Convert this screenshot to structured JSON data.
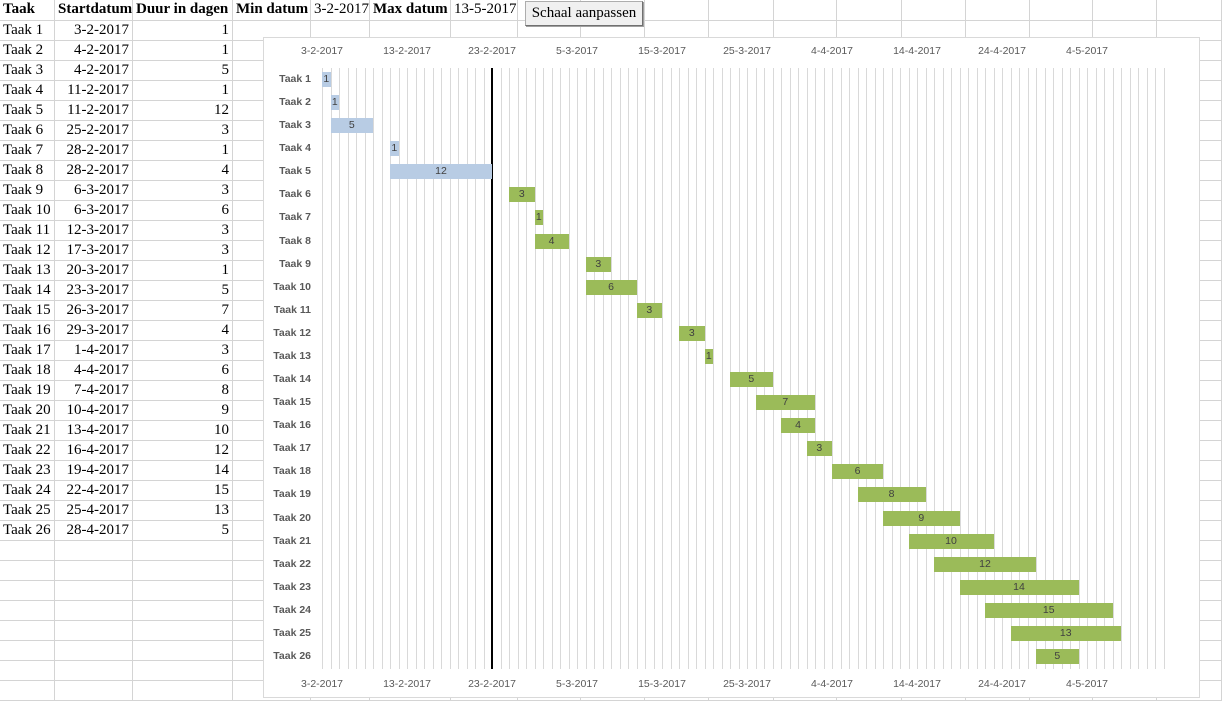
{
  "sheet": {
    "headers": [
      "Taak",
      "Startdatum",
      "Duur in dagen"
    ],
    "min_label": "Min datum",
    "min_value": "3-2-2017",
    "max_label": "Max datum",
    "max_value": "13-5-2017",
    "button_label": "Schaal aanpassen",
    "rows": [
      {
        "task": "Taak 1",
        "start": "3-2-2017",
        "duration": "1"
      },
      {
        "task": "Taak 2",
        "start": "4-2-2017",
        "duration": "1"
      },
      {
        "task": "Taak 3",
        "start": "4-2-2017",
        "duration": "5"
      },
      {
        "task": "Taak 4",
        "start": "11-2-2017",
        "duration": "1"
      },
      {
        "task": "Taak 5",
        "start": "11-2-2017",
        "duration": "12"
      },
      {
        "task": "Taak 6",
        "start": "25-2-2017",
        "duration": "3"
      },
      {
        "task": "Taak 7",
        "start": "28-2-2017",
        "duration": "1"
      },
      {
        "task": "Taak 8",
        "start": "28-2-2017",
        "duration": "4"
      },
      {
        "task": "Taak 9",
        "start": "6-3-2017",
        "duration": "3"
      },
      {
        "task": "Taak 10",
        "start": "6-3-2017",
        "duration": "6"
      },
      {
        "task": "Taak 11",
        "start": "12-3-2017",
        "duration": "3"
      },
      {
        "task": "Taak 12",
        "start": "17-3-2017",
        "duration": "3"
      },
      {
        "task": "Taak 13",
        "start": "20-3-2017",
        "duration": "1"
      },
      {
        "task": "Taak 14",
        "start": "23-3-2017",
        "duration": "5"
      },
      {
        "task": "Taak 15",
        "start": "26-3-2017",
        "duration": "7"
      },
      {
        "task": "Taak 16",
        "start": "29-3-2017",
        "duration": "4"
      },
      {
        "task": "Taak 17",
        "start": "1-4-2017",
        "duration": "3"
      },
      {
        "task": "Taak 18",
        "start": "4-4-2017",
        "duration": "6"
      },
      {
        "task": "Taak 19",
        "start": "7-4-2017",
        "duration": "8"
      },
      {
        "task": "Taak 20",
        "start": "10-4-2017",
        "duration": "9"
      },
      {
        "task": "Taak 21",
        "start": "13-4-2017",
        "duration": "10"
      },
      {
        "task": "Taak 22",
        "start": "16-4-2017",
        "duration": "12"
      },
      {
        "task": "Taak 23",
        "start": "19-4-2017",
        "duration": "14"
      },
      {
        "task": "Taak 24",
        "start": "22-4-2017",
        "duration": "15"
      },
      {
        "task": "Taak 25",
        "start": "25-4-2017",
        "duration": "13"
      },
      {
        "task": "Taak 26",
        "start": "28-4-2017",
        "duration": "5"
      }
    ]
  },
  "colors": {
    "past_bar": "#B8CCE4",
    "future_bar": "#9BBB59",
    "today_line": "#000000",
    "gridline": "#D9D9D9"
  },
  "chart_data": {
    "type": "bar",
    "subtype": "gantt",
    "title": "",
    "xlabel": "",
    "ylabel": "",
    "x_range": [
      "3-2-2017",
      "13-5-2017"
    ],
    "x_ticks": [
      "3-2-2017",
      "13-2-2017",
      "23-2-2017",
      "5-3-2017",
      "15-3-2017",
      "25-3-2017",
      "4-4-2017",
      "14-4-2017",
      "24-4-2017",
      "4-5-2017"
    ],
    "grid": "daily vertical gridlines",
    "today_marker": "23-2-2017",
    "categories": [
      "Taak 1",
      "Taak 2",
      "Taak 3",
      "Taak 4",
      "Taak 5",
      "Taak 6",
      "Taak 7",
      "Taak 8",
      "Taak 9",
      "Taak 10",
      "Taak 11",
      "Taak 12",
      "Taak 13",
      "Taak 14",
      "Taak 15",
      "Taak 16",
      "Taak 17",
      "Taak 18",
      "Taak 19",
      "Taak 20",
      "Taak 21",
      "Taak 22",
      "Taak 23",
      "Taak 24",
      "Taak 25",
      "Taak 26"
    ],
    "start_offset_days": [
      0,
      1,
      1,
      8,
      8,
      22,
      25,
      25,
      31,
      31,
      37,
      42,
      45,
      48,
      51,
      54,
      57,
      60,
      63,
      66,
      69,
      72,
      75,
      78,
      81,
      84
    ],
    "durations": [
      1,
      1,
      5,
      1,
      12,
      3,
      1,
      4,
      3,
      6,
      3,
      3,
      1,
      5,
      7,
      4,
      3,
      6,
      8,
      9,
      10,
      12,
      14,
      15,
      13,
      5
    ],
    "status": [
      "past",
      "past",
      "past",
      "past",
      "past",
      "future",
      "future",
      "future",
      "future",
      "future",
      "future",
      "future",
      "future",
      "future",
      "future",
      "future",
      "future",
      "future",
      "future",
      "future",
      "future",
      "future",
      "future",
      "future",
      "future",
      "future"
    ]
  }
}
